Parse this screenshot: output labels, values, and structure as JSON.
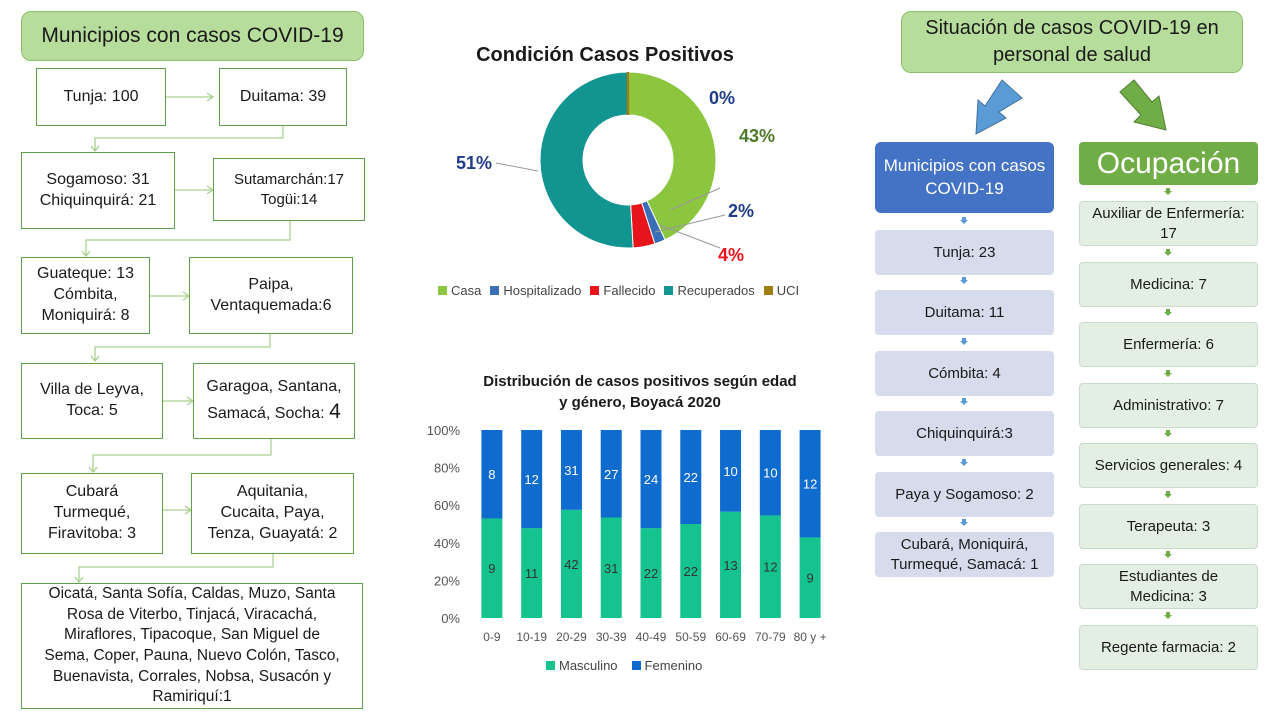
{
  "left": {
    "title": "Municipios con casos COVID-19",
    "boxes": [
      "Tunja: 100",
      "Duitama: 39",
      "Sogamoso: 31\nChiquinquirá: 21",
      "Sutamarchán:17\nTogüi:14",
      "Guateque: 13\nCómbita,\nMoniquirá: 8",
      "Paipa,\nVentaquemada:6",
      "Villa de Leyva,\nToca: 5",
      "Garagoa, Santana,\nSamacá, Socha:",
      "Cubará\nTurmequé,\nFiravitoba: 3",
      "Aquitania,\nCucaita, Paya,\nTenza, Guayatá: 2",
      "Oicatá, Santa Sofía, Caldas, Muzo, Santa\nRosa de Viterbo, Tinjacá, Viracachá,\nMiraflores, Tipacoque, San Miguel de\nSema, Coper, Pauna, Nuevo Colón, Tasco,\nBuenavista, Corrales, Nobsa, Susacón y\nRamiriquí:1"
    ],
    "garagoa_count": "4"
  },
  "donut": {
    "title": "Condición Casos Positivos",
    "labels": {
      "casa": "43%",
      "hosp": "2%",
      "fall": "4%",
      "recup": "51%",
      "uci": "0%"
    },
    "legend": [
      "Casa",
      "Hospitalizado",
      "Fallecido",
      "Recuperados",
      "UCI"
    ],
    "colors": [
      "#8cc63f",
      "#3a6fb7",
      "#e8141b",
      "#129491",
      "#a07d10"
    ]
  },
  "bar": {
    "title_line1": "Distribución de casos positivos según edad",
    "title_line2": "y género, Boyacá 2020",
    "legend": [
      "Masculino",
      "Femenino"
    ]
  },
  "chart_data": [
    {
      "type": "pie",
      "title": "Condición Casos Positivos",
      "categories": [
        "Casa",
        "Hospitalizado",
        "Fallecido",
        "Recuperados",
        "UCI"
      ],
      "values": [
        43,
        2,
        4,
        51,
        0
      ],
      "colors": [
        "#8cc63f",
        "#3a6fb7",
        "#e8141b",
        "#129491",
        "#a07d10"
      ]
    },
    {
      "type": "bar",
      "stacked": "percent",
      "title": "Distribución de casos positivos según edad y género, Boyacá 2020",
      "categories": [
        "0-9",
        "10-19",
        "20-29",
        "30-39",
        "40-49",
        "50-59",
        "60-69",
        "70-79",
        "80 y +"
      ],
      "series": [
        {
          "name": "Masculino",
          "values": [
            9,
            11,
            42,
            31,
            22,
            22,
            13,
            12,
            9
          ],
          "color": "#14c38e"
        },
        {
          "name": "Femenino",
          "values": [
            8,
            12,
            31,
            27,
            24,
            22,
            10,
            10,
            12
          ],
          "color": "#0f6ccf"
        }
      ],
      "yticks": [
        "0%",
        "20%",
        "40%",
        "60%",
        "80%",
        "100%"
      ],
      "ylim": [
        0,
        100
      ],
      "legend": "bottom"
    }
  ],
  "right": {
    "title": "Situación de casos COVID-19 en\npersonal de salud",
    "muni_header": "Municipios con casos\nCOVID-19",
    "muni": [
      "Tunja: 23",
      "Duitama: 11",
      "Cómbita: 4",
      "Chiquinquirá:3",
      "Paya y Sogamoso: 2",
      "Cubará, Moniquirá,\nTurmequé, Samacá: 1"
    ],
    "occ_header": "Ocupación",
    "occ": [
      "Auxiliar de Enfermería:\n17",
      "Medicina: 7",
      "Enfermería: 6",
      "Administrativo:  7",
      "Servicios generales: 4",
      "Terapeuta: 3",
      "Estudiantes de\nMedicina: 3",
      "Regente farmacia: 2"
    ]
  }
}
